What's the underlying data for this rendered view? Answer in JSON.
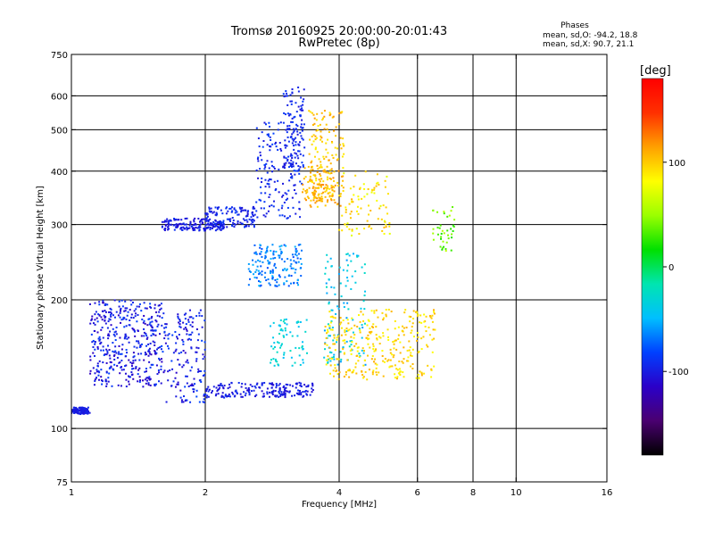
{
  "chart_data": {
    "type": "scatter",
    "title": "Tromsø 20160925 20:00:00-20:01:43",
    "subtitle": "RwPretec (8p)",
    "stats": {
      "heading": "Phases",
      "line_o": "mean, sd,O: -94.2, 18.8",
      "line_x": "mean, sd,X:  90.7, 21.1"
    },
    "xlabel": "Frequency [MHz]",
    "ylabel": "Stationary phase Virtual Height [km]",
    "x_scale": "log",
    "y_scale": "log",
    "xlim": [
      1,
      16
    ],
    "ylim": [
      75,
      750
    ],
    "x_ticks": [
      {
        "value": 1,
        "label": "1"
      },
      {
        "value": 2,
        "label": "2"
      },
      {
        "value": 4,
        "label": "4"
      },
      {
        "value": 6,
        "label": "6"
      },
      {
        "value": 8,
        "label": "8"
      },
      {
        "value": 10,
        "label": "10"
      },
      {
        "value": 16,
        "label": "16"
      }
    ],
    "y_ticks": [
      {
        "value": 75,
        "label": "75"
      },
      {
        "value": 100,
        "label": "100"
      },
      {
        "value": 200,
        "label": "200"
      },
      {
        "value": 300,
        "label": "300"
      },
      {
        "value": 400,
        "label": "400"
      },
      {
        "value": 500,
        "label": "500"
      },
      {
        "value": 600,
        "label": "600"
      },
      {
        "value": 750,
        "label": "750"
      }
    ],
    "x_gridlines": [
      2,
      4,
      6,
      8,
      10
    ],
    "y_gridlines": [
      100,
      200,
      300,
      400,
      500,
      600
    ],
    "grid": true,
    "colorbar": {
      "label": "[deg]",
      "range": [
        -180,
        180
      ],
      "ticks": [
        {
          "value": 100,
          "label": "100"
        },
        {
          "value": 0,
          "label": "0"
        },
        {
          "value": -100,
          "label": "-100"
        }
      ],
      "colors": [
        "#000000",
        "#4a0070",
        "#2b00c8",
        "#0040ff",
        "#00bfff",
        "#00e5b0",
        "#00e000",
        "#9aff00",
        "#ffff00",
        "#ffa000",
        "#ff3000",
        "#ff0000"
      ]
    },
    "clusters": [
      {
        "x": [
          1.0,
          1.1
        ],
        "y": [
          108,
          112
        ],
        "phase": [
          -105,
          -95
        ],
        "n": 120
      },
      {
        "x": [
          1.1,
          1.6
        ],
        "y": [
          125,
          200
        ],
        "phase": [
          -120,
          -80
        ],
        "n": 420
      },
      {
        "x": [
          1.6,
          2.0
        ],
        "y": [
          115,
          190
        ],
        "phase": [
          -115,
          -80
        ],
        "n": 160
      },
      {
        "x": [
          1.6,
          2.2
        ],
        "y": [
          290,
          310
        ],
        "phase": [
          -110,
          -90
        ],
        "n": 160
      },
      {
        "x": [
          2.0,
          2.6
        ],
        "y": [
          295,
          330
        ],
        "phase": [
          -105,
          -85
        ],
        "n": 130
      },
      {
        "x": [
          2.6,
          3.3
        ],
        "y": [
          310,
          520
        ],
        "phase": [
          -105,
          -80
        ],
        "n": 170
      },
      {
        "x": [
          3.0,
          3.35
        ],
        "y": [
          400,
          630
        ],
        "phase": [
          -105,
          -85
        ],
        "n": 110
      },
      {
        "x": [
          2.0,
          3.5
        ],
        "y": [
          118,
          128
        ],
        "phase": [
          -110,
          -90
        ],
        "n": 200
      },
      {
        "x": [
          2.5,
          3.3
        ],
        "y": [
          215,
          270
        ],
        "phase": [
          -80,
          -50
        ],
        "n": 160
      },
      {
        "x": [
          2.8,
          3.4
        ],
        "y": [
          140,
          180
        ],
        "phase": [
          -50,
          -20
        ],
        "n": 70
      },
      {
        "x": [
          3.4,
          4.1
        ],
        "y": [
          330,
          560
        ],
        "phase": [
          85,
          120
        ],
        "n": 160
      },
      {
        "x": [
          3.3,
          3.9
        ],
        "y": [
          340,
          410
        ],
        "phase": [
          95,
          125
        ],
        "n": 90
      },
      {
        "x": [
          4.0,
          5.2
        ],
        "y": [
          280,
          400
        ],
        "phase": [
          70,
          110
        ],
        "n": 90
      },
      {
        "x": [
          3.7,
          4.6
        ],
        "y": [
          140,
          260
        ],
        "phase": [
          -60,
          -20
        ],
        "n": 110
      },
      {
        "x": [
          3.7,
          6.6
        ],
        "y": [
          130,
          190
        ],
        "phase": [
          80,
          110
        ],
        "n": 320
      },
      {
        "x": [
          6.5,
          7.3
        ],
        "y": [
          260,
          330
        ],
        "phase": [
          20,
          60
        ],
        "n": 40
      }
    ],
    "point_count_estimate": 2600
  }
}
